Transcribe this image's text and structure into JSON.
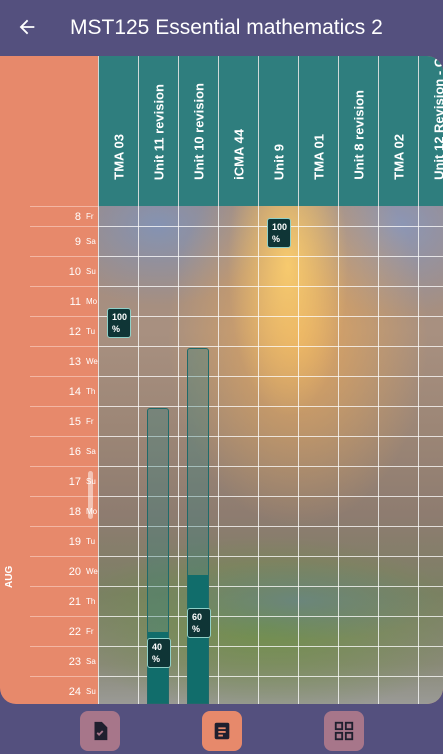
{
  "appbar": {
    "title": "MST125 Essential mathematics 2"
  },
  "columns": [
    {
      "label": "TMA 03"
    },
    {
      "label": "Unit 11 revision"
    },
    {
      "label": "Unit 10 revision"
    },
    {
      "label": "iCMA 44"
    },
    {
      "label": "Unit 9"
    },
    {
      "label": "TMA 01"
    },
    {
      "label": "Unit 8 revision"
    },
    {
      "label": "TMA 02"
    },
    {
      "label": "Unit 12 Revision - C..."
    }
  ],
  "month": "AUG",
  "rows": [
    {
      "day": "8",
      "weekday": "Fr"
    },
    {
      "day": "9",
      "weekday": "Sa"
    },
    {
      "day": "10",
      "weekday": "Su"
    },
    {
      "day": "11",
      "weekday": "Mo"
    },
    {
      "day": "12",
      "weekday": "Tu"
    },
    {
      "day": "13",
      "weekday": "We"
    },
    {
      "day": "14",
      "weekday": "Th"
    },
    {
      "day": "15",
      "weekday": "Fr"
    },
    {
      "day": "16",
      "weekday": "Sa"
    },
    {
      "day": "17",
      "weekday": "Su"
    },
    {
      "day": "18",
      "weekday": "Mo"
    },
    {
      "day": "19",
      "weekday": "Tu"
    },
    {
      "day": "20",
      "weekday": "We"
    },
    {
      "day": "21",
      "weekday": "Th"
    },
    {
      "day": "22",
      "weekday": "Fr"
    },
    {
      "day": "23",
      "weekday": "Sa"
    },
    {
      "day": "24",
      "weekday": "Su"
    }
  ],
  "badges": [
    {
      "text": "100 %",
      "column": "Unit 9",
      "date": "9 Sa"
    },
    {
      "text": "100 %",
      "column": "TMA 03",
      "date": "12 Tu"
    },
    {
      "text": "60 %",
      "column": "Unit 10 revision",
      "date": "22 Fr"
    },
    {
      "text": "40 %",
      "column": "Unit 11 revision",
      "date": "23 Sa"
    }
  ],
  "bars": [
    {
      "column": "Unit 11 revision",
      "start": "15 Fr",
      "progress": 0.4
    },
    {
      "column": "Unit 10 revision",
      "start": "13 We",
      "progress": 0.6
    }
  ],
  "nav": [
    {
      "icon": "task-check-icon",
      "bg": "#a7768a"
    },
    {
      "icon": "notes-icon",
      "bg": "#e7896b"
    },
    {
      "icon": "grid-icon",
      "bg": "#a7768a"
    }
  ],
  "colors": {
    "appbar": "#54507e",
    "header_teal": "#2f7e7e",
    "row_label": "#e7896b",
    "bar_fill": "#116d6b",
    "badge_bg": "#0f3536"
  }
}
